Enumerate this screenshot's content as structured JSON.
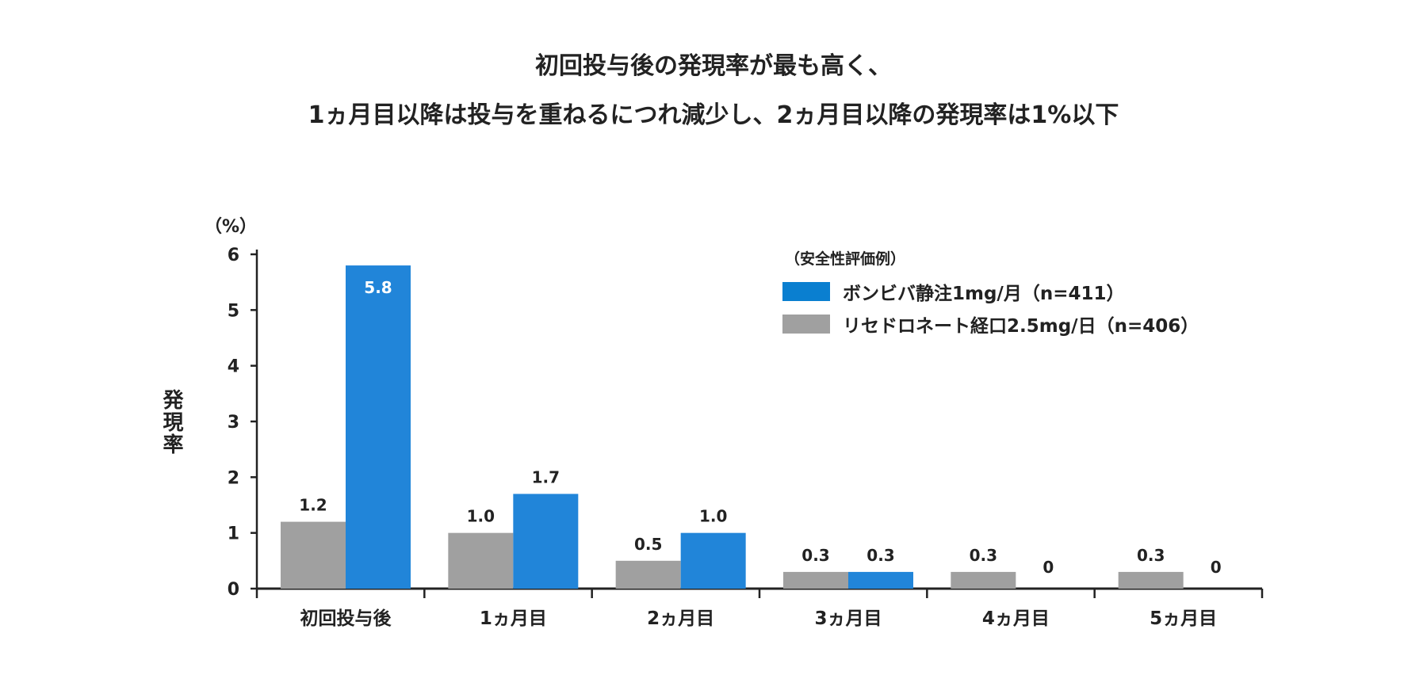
{
  "title_lines": [
    "初回投与後の発現率が最も高く、",
    "1ヵ月目以降は投与を重ねるにつれ減少し、2ヵ月目以降の発現率は1%以下"
  ],
  "chart_data": {
    "type": "bar",
    "categories": [
      "初回投与後",
      "1ヵ月目",
      "2ヵ月目",
      "3ヵ月目",
      "4ヵ月目",
      "5ヵ月目"
    ],
    "series": [
      {
        "name": "リセドロネート経口2.5mg/日（n=406）",
        "values": [
          1.2,
          1.0,
          0.5,
          0.3,
          0.3,
          0.3
        ],
        "labels": [
          "1.2",
          "1.0",
          "0.5",
          "0.3",
          "0.3",
          "0.3"
        ],
        "color": "#a0a0a0"
      },
      {
        "name": "ボンビバ静注1mg/月（n=411）",
        "values": [
          5.8,
          1.7,
          1.0,
          0.3,
          0,
          0
        ],
        "labels": [
          "5.8",
          "1.7",
          "1.0",
          "0.3",
          "0",
          "0"
        ],
        "color": "#2185d9"
      }
    ],
    "ylabel": "発現率",
    "yunit": "（%）",
    "ylim": [
      0,
      6
    ],
    "yticks": [
      "0",
      "1",
      "2",
      "3",
      "4",
      "5",
      "6"
    ],
    "grid": false,
    "legend_title": "（安全性評価例）",
    "legend_placement": "top-right",
    "legend_colors": {
      "blue": "#0a7fd0",
      "gray": "#a0a0a0"
    }
  }
}
